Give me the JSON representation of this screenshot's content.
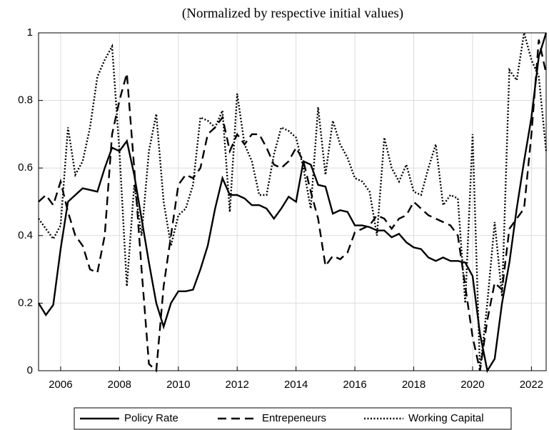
{
  "chart_data": {
    "type": "line",
    "title": "(Normalized by respective initial values)",
    "x": [
      2005.25,
      2005.5,
      2005.75,
      2006,
      2006.25,
      2006.5,
      2006.75,
      2007,
      2007.25,
      2007.5,
      2007.75,
      2008,
      2008.25,
      2008.5,
      2008.75,
      2009,
      2009.25,
      2009.5,
      2009.75,
      2010,
      2010.25,
      2010.5,
      2010.75,
      2011,
      2011.25,
      2011.5,
      2011.75,
      2012,
      2012.25,
      2012.5,
      2012.75,
      2013,
      2013.25,
      2013.5,
      2013.75,
      2014,
      2014.25,
      2014.5,
      2014.75,
      2015,
      2015.25,
      2015.5,
      2015.75,
      2016,
      2016.25,
      2016.5,
      2016.75,
      2017,
      2017.25,
      2017.5,
      2017.75,
      2018,
      2018.25,
      2018.5,
      2018.75,
      2019,
      2019.25,
      2019.5,
      2019.75,
      2020,
      2020.25,
      2020.5,
      2020.75,
      2021,
      2021.25,
      2021.5,
      2021.75,
      2022,
      2022.25,
      2022.5
    ],
    "series": [
      {
        "name": "Policy Rate",
        "color": "#000000",
        "style": "solid",
        "values": [
          0.2,
          0.165,
          0.195,
          0.36,
          0.5,
          0.52,
          0.54,
          0.535,
          0.53,
          0.6,
          0.66,
          0.65,
          0.68,
          0.58,
          0.45,
          0.32,
          0.2,
          0.13,
          0.2,
          0.235,
          0.235,
          0.24,
          0.3,
          0.37,
          0.48,
          0.57,
          0.52,
          0.52,
          0.51,
          0.49,
          0.49,
          0.48,
          0.45,
          0.48,
          0.515,
          0.5,
          0.62,
          0.61,
          0.55,
          0.545,
          0.465,
          0.475,
          0.47,
          0.43,
          0.43,
          0.425,
          0.415,
          0.415,
          0.395,
          0.405,
          0.38,
          0.365,
          0.36,
          0.335,
          0.325,
          0.335,
          0.325,
          0.325,
          0.32,
          0.28,
          0.11,
          0,
          0.035,
          0.2,
          0.32,
          0.48,
          0.62,
          0.75,
          0.93,
          1
        ]
      },
      {
        "name": "Entrepeneurs",
        "color": "#000000",
        "style": "dashed",
        "values": [
          0.5,
          0.52,
          0.49,
          0.56,
          0.47,
          0.4,
          0.37,
          0.3,
          0.29,
          0.4,
          0.7,
          0.8,
          0.88,
          0.6,
          0.3,
          0.02,
          0,
          0.25,
          0.4,
          0.55,
          0.58,
          0.57,
          0.6,
          0.7,
          0.72,
          0.75,
          0.65,
          0.7,
          0.67,
          0.7,
          0.7,
          0.66,
          0.61,
          0.6,
          0.62,
          0.66,
          0.62,
          0.53,
          0.45,
          0.31,
          0.34,
          0.33,
          0.35,
          0.41,
          0.42,
          0.43,
          0.46,
          0.45,
          0.42,
          0.45,
          0.46,
          0.5,
          0.48,
          0.46,
          0.45,
          0.44,
          0.43,
          0.4,
          0.25,
          0.1,
          0,
          0.15,
          0.26,
          0.24,
          0.42,
          0.45,
          0.48,
          0.7,
          0.98,
          0.88
        ]
      },
      {
        "name": "Working Capital",
        "color": "#000000",
        "style": "dotted",
        "values": [
          0.45,
          0.42,
          0.39,
          0.43,
          0.72,
          0.58,
          0.62,
          0.72,
          0.87,
          0.92,
          0.96,
          0.65,
          0.25,
          0.55,
          0.4,
          0.65,
          0.76,
          0.5,
          0.37,
          0.46,
          0.48,
          0.55,
          0.75,
          0.74,
          0.72,
          0.77,
          0.47,
          0.82,
          0.67,
          0.62,
          0.52,
          0.52,
          0.64,
          0.72,
          0.71,
          0.69,
          0.6,
          0.48,
          0.78,
          0.58,
          0.74,
          0.67,
          0.63,
          0.57,
          0.56,
          0.53,
          0.4,
          0.69,
          0.6,
          0.56,
          0.61,
          0.53,
          0.52,
          0.6,
          0.67,
          0.49,
          0.52,
          0.51,
          0.2,
          0.7,
          0,
          0.2,
          0.44,
          0.22,
          0.89,
          0.86,
          1,
          0.92,
          0.87,
          0.65
        ]
      }
    ],
    "xlim": [
      2005.25,
      2022.5
    ],
    "xticks": [
      2006,
      2008,
      2010,
      2012,
      2014,
      2016,
      2018,
      2020,
      2022
    ],
    "ylim": [
      0,
      1
    ],
    "yticks": [
      0,
      0.2,
      0.4,
      0.6,
      0.8,
      1
    ],
    "grid": true,
    "legend": "bottom"
  }
}
